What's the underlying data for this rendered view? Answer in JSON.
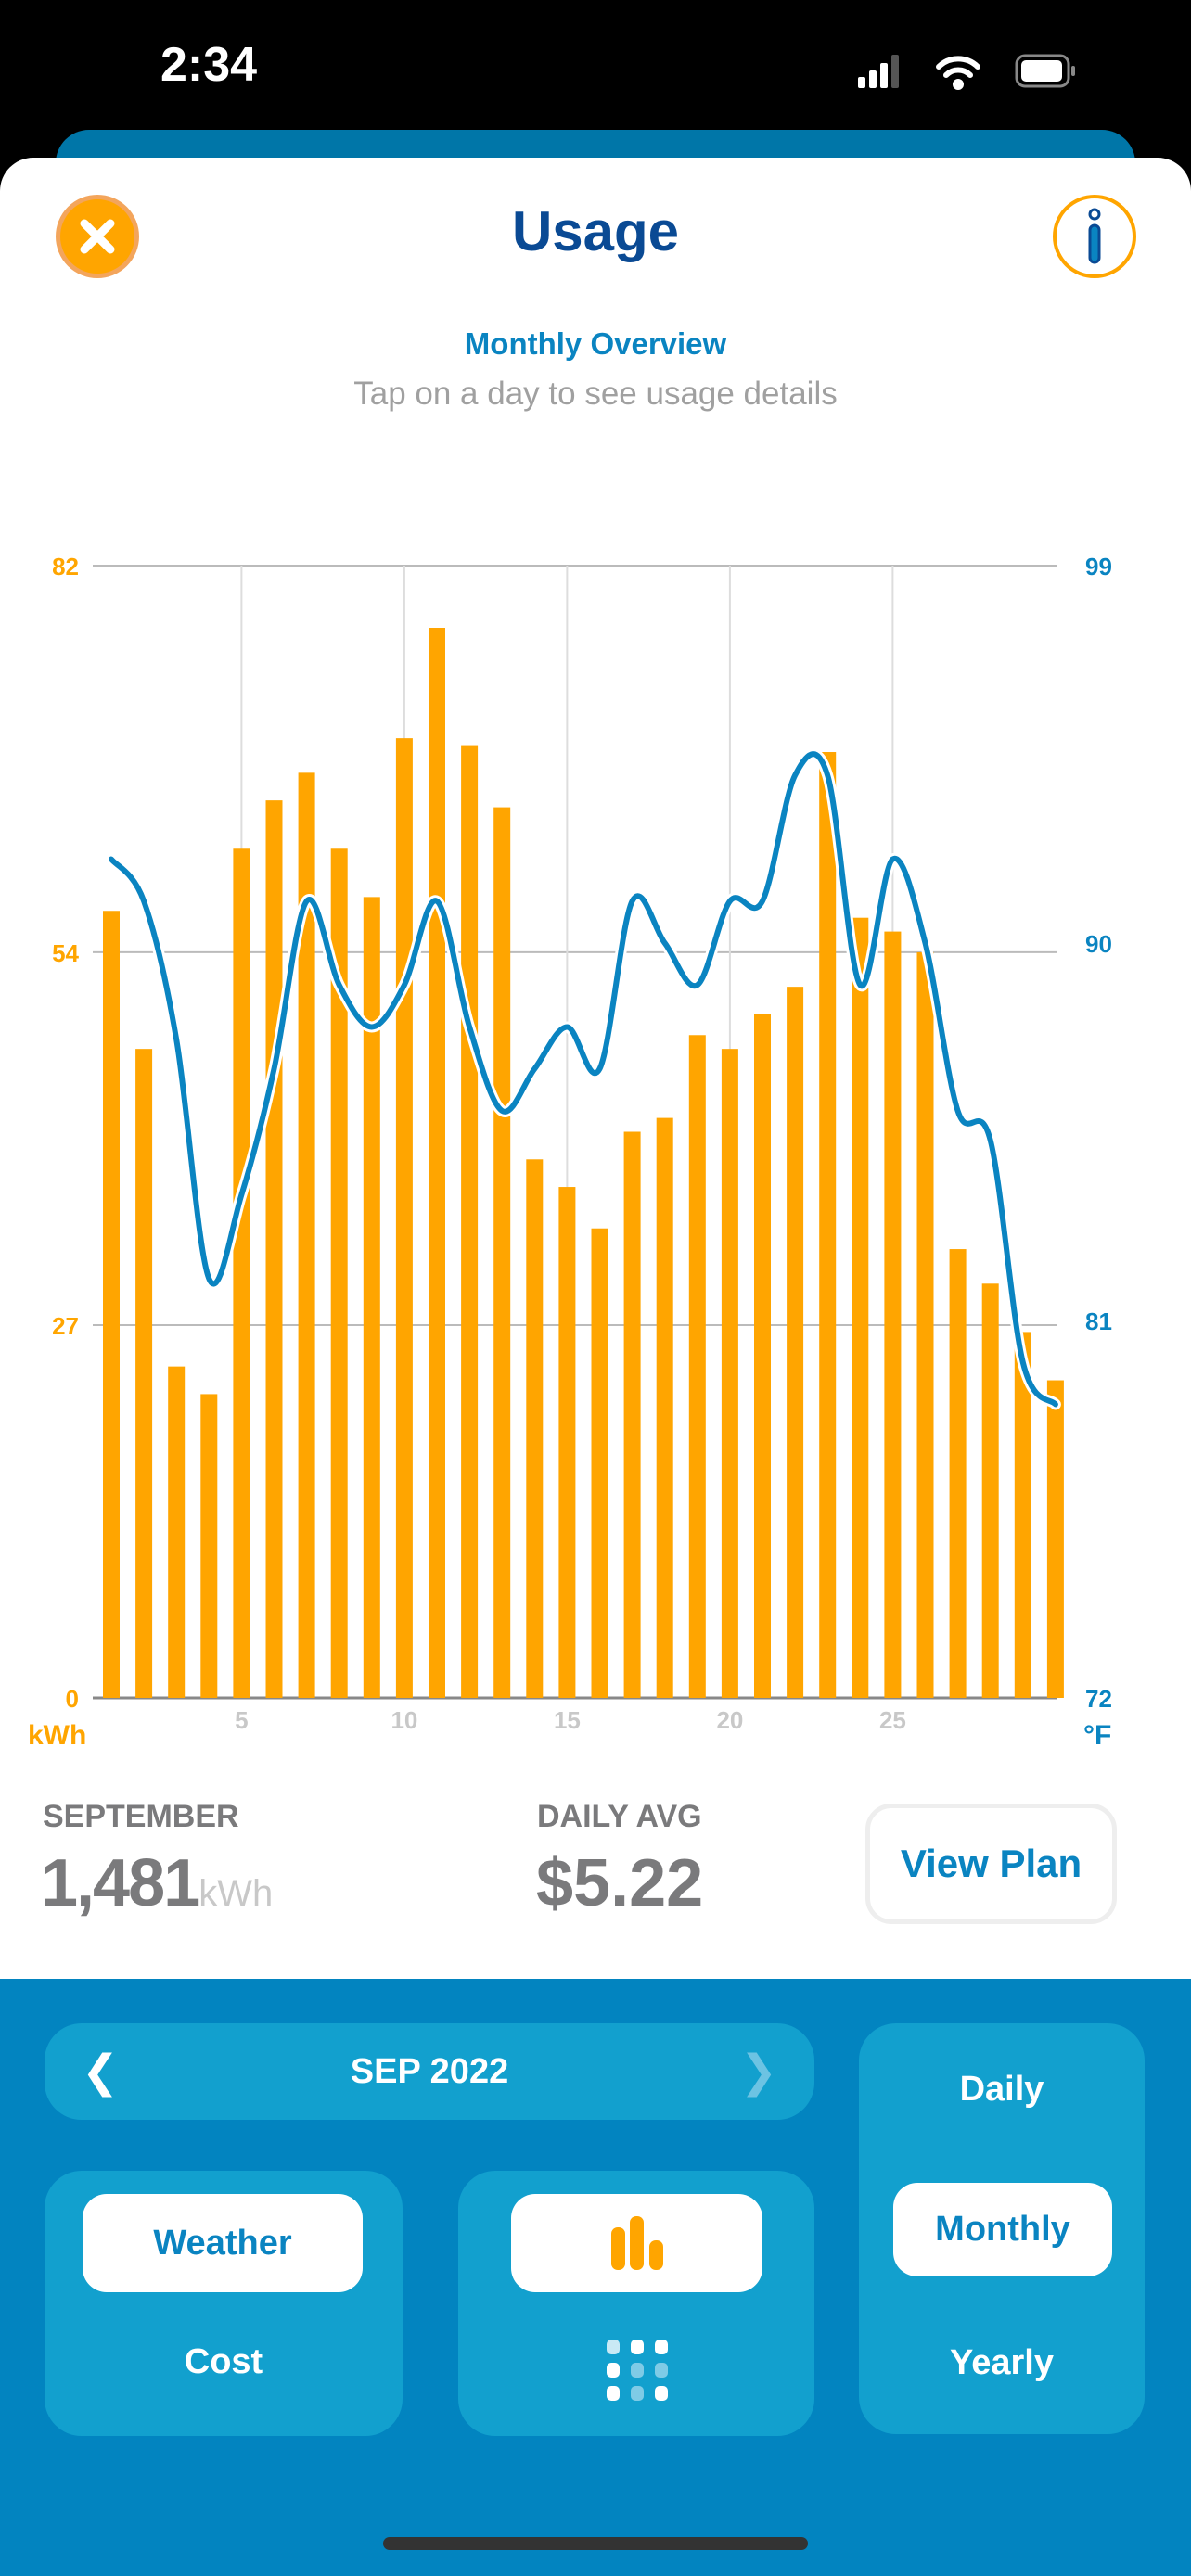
{
  "status_bar": {
    "time": "2:34"
  },
  "header": {
    "title": "Usage",
    "close_icon": "close-icon",
    "info_icon": "info-icon"
  },
  "overview": {
    "title": "Monthly Overview",
    "hint": "Tap on a day to see usage details"
  },
  "colors": {
    "usage_bar": "#FFA500",
    "temperature_line": "#0A84C1",
    "title": "#0A4A94",
    "panel": "#12A0CE",
    "background_blue": "#0284C0"
  },
  "chart_data": {
    "type": "bar",
    "title": "Monthly Overview",
    "xlabel": "",
    "x": [
      1,
      2,
      3,
      4,
      5,
      6,
      7,
      8,
      9,
      10,
      11,
      12,
      13,
      14,
      15,
      16,
      17,
      18,
      19,
      20,
      21,
      22,
      23,
      24,
      25,
      26,
      27,
      28,
      29,
      30
    ],
    "x_ticks": [
      "5",
      "10",
      "15",
      "20",
      "25"
    ],
    "x_tick_values": [
      5,
      10,
      15,
      20,
      25
    ],
    "series": [
      {
        "name": "Usage",
        "type": "bar",
        "unit": "kWh",
        "axis": "left",
        "values": [
          57,
          47,
          24,
          22,
          61.5,
          65,
          67,
          61.5,
          58,
          69.5,
          77.5,
          69,
          64.5,
          39,
          37,
          34,
          41,
          42,
          48,
          47,
          49.5,
          51.5,
          68.5,
          56.5,
          55.5,
          54,
          32.5,
          30,
          26.5,
          23
        ]
      },
      {
        "name": "Temperature",
        "type": "line",
        "unit": "°F",
        "axis": "right",
        "values": [
          92,
          91,
          87.7,
          82,
          84,
          87,
          91,
          89,
          88,
          89,
          91,
          88,
          86,
          87,
          88,
          87,
          91,
          90,
          89,
          91,
          91,
          94,
          94,
          89,
          92,
          90,
          86,
          85.3,
          80,
          79
        ]
      }
    ],
    "left_axis": {
      "label": "kWh",
      "ticks": [
        "0",
        "27",
        "54",
        "82"
      ],
      "tick_values": [
        0,
        27,
        54,
        82
      ],
      "ylim": [
        0,
        82
      ]
    },
    "right_axis": {
      "label": "°F",
      "ticks": [
        "72",
        "81",
        "90",
        "99"
      ],
      "tick_values": [
        72,
        81,
        90,
        99
      ],
      "ylim": [
        72,
        99
      ]
    },
    "grid": true
  },
  "summary": {
    "month_label": "SEPTEMBER",
    "total": "1,481",
    "total_unit": "kWh",
    "avg_label": "DAILY AVG",
    "avg_value": "$5.22",
    "view_plan": "View Plan"
  },
  "controls": {
    "month": "SEP 2022",
    "prev_icon": "chevron-left-icon",
    "next_icon": "chevron-right-icon",
    "metric": {
      "selected": "Weather",
      "other": "Cost"
    },
    "chart_type": {
      "selected": "bar-chart-icon",
      "other": "grid-icon"
    },
    "period": {
      "options": [
        "Daily",
        "Monthly",
        "Yearly"
      ],
      "selected": "Monthly"
    }
  }
}
